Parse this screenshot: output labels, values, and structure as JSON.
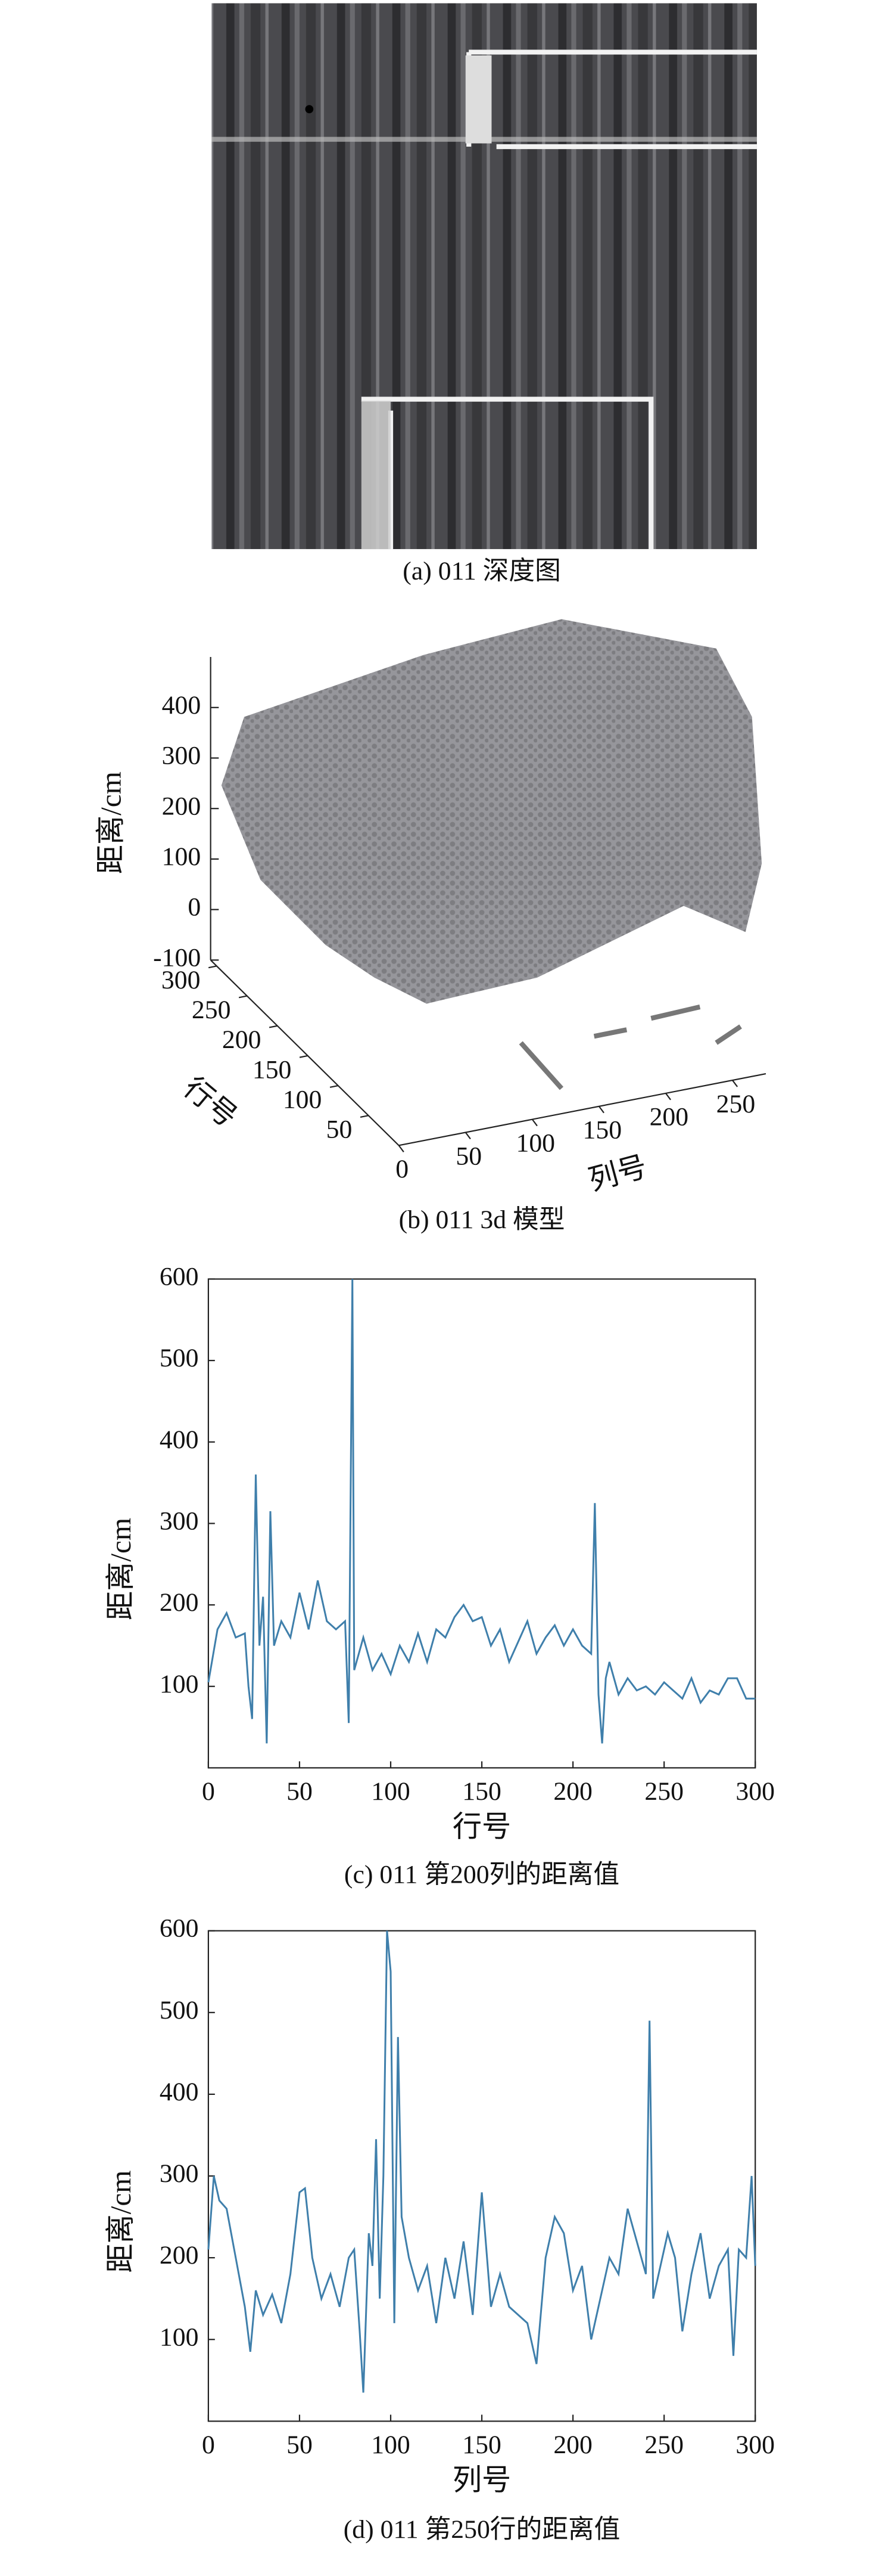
{
  "image_panel": {
    "caption": "(a) 011 深度图"
  },
  "chart_data": [
    {
      "type": "scatter3d",
      "caption": "(b) 011 3d 模型",
      "xlabel": "列号",
      "ylabel": "行号",
      "zlabel": "距离/cm",
      "xlim": [
        0,
        275
      ],
      "xticks": [
        0,
        50,
        100,
        150,
        200,
        250
      ],
      "ylim": [
        0,
        310
      ],
      "yticks": [
        50,
        100,
        150,
        200,
        250,
        300
      ],
      "zlim": [
        -100,
        500
      ],
      "zticks": [
        -100,
        0,
        100,
        200,
        300,
        400
      ],
      "color": "#6f6f73"
    },
    {
      "type": "line",
      "caption": "(c) 011 第200列的距离值",
      "xlabel": "行号",
      "ylabel": "距离/cm",
      "color": "#3f7fab",
      "x": [
        0,
        5,
        10,
        15,
        20,
        22,
        24,
        26,
        28,
        30,
        32,
        34,
        36,
        40,
        45,
        50,
        55,
        60,
        65,
        70,
        75,
        77,
        79,
        80,
        85,
        90,
        95,
        100,
        105,
        110,
        115,
        120,
        125,
        130,
        135,
        140,
        145,
        150,
        155,
        160,
        165,
        170,
        175,
        180,
        185,
        190,
        195,
        200,
        205,
        210,
        212,
        214,
        216,
        218,
        220,
        225,
        230,
        235,
        240,
        245,
        250,
        255,
        260,
        265,
        270,
        275,
        280,
        285,
        290,
        295,
        300
      ],
      "values": [
        105,
        170,
        190,
        160,
        165,
        100,
        60,
        360,
        150,
        210,
        30,
        315,
        150,
        180,
        160,
        215,
        170,
        230,
        180,
        170,
        180,
        55,
        600,
        120,
        160,
        120,
        140,
        115,
        150,
        130,
        165,
        130,
        170,
        160,
        185,
        200,
        180,
        185,
        150,
        170,
        130,
        155,
        180,
        140,
        160,
        175,
        150,
        170,
        150,
        140,
        325,
        90,
        30,
        110,
        130,
        90,
        110,
        95,
        100,
        90,
        105,
        95,
        85,
        110,
        80,
        95,
        90,
        110,
        110,
        85,
        85
      ],
      "xlim": [
        0,
        300
      ],
      "xticks": [
        0,
        50,
        100,
        150,
        200,
        250,
        300
      ],
      "ylim": [
        0,
        600
      ],
      "yticks": [
        100,
        200,
        300,
        400,
        500,
        600
      ]
    },
    {
      "type": "line",
      "caption": "(d) 011 第250行的距离值",
      "xlabel": "列号",
      "ylabel": "距离/cm",
      "color": "#3f7fab",
      "x": [
        0,
        3,
        6,
        10,
        15,
        20,
        23,
        26,
        30,
        35,
        40,
        45,
        50,
        53,
        57,
        62,
        67,
        72,
        77,
        80,
        83,
        85,
        88,
        90,
        92,
        94,
        96,
        98,
        100,
        102,
        104,
        106,
        110,
        115,
        120,
        125,
        130,
        135,
        140,
        145,
        150,
        155,
        160,
        165,
        170,
        175,
        180,
        185,
        190,
        195,
        200,
        205,
        210,
        215,
        220,
        225,
        230,
        235,
        240,
        242,
        244,
        248,
        252,
        256,
        260,
        265,
        270,
        275,
        280,
        285,
        288,
        291,
        295,
        298,
        300
      ],
      "values": [
        210,
        300,
        270,
        260,
        200,
        140,
        85,
        160,
        130,
        155,
        120,
        180,
        280,
        285,
        200,
        150,
        180,
        140,
        200,
        210,
        110,
        35,
        230,
        190,
        345,
        150,
        300,
        600,
        550,
        120,
        470,
        250,
        200,
        160,
        190,
        120,
        200,
        150,
        220,
        130,
        280,
        140,
        180,
        140,
        130,
        120,
        70,
        200,
        250,
        230,
        160,
        190,
        100,
        150,
        200,
        180,
        260,
        220,
        180,
        490,
        150,
        190,
        230,
        200,
        110,
        180,
        230,
        150,
        190,
        210,
        80,
        210,
        200,
        300,
        190
      ],
      "xlim": [
        0,
        300
      ],
      "xticks": [
        0,
        50,
        100,
        150,
        200,
        250,
        300
      ],
      "ylim": [
        0,
        600
      ],
      "yticks": [
        100,
        200,
        300,
        400,
        500,
        600
      ]
    }
  ]
}
